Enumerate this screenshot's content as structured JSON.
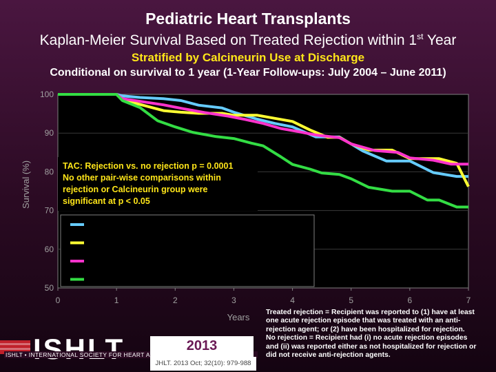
{
  "header": {
    "title": "Pediatric Heart Transplants",
    "subtitle_prefix": "Kaplan-Meier Survival Based on Treated Rejection within 1",
    "subtitle_sup": "st",
    "subtitle_suffix": " Year",
    "stratified": "Stratified by Calcineurin Use at Discharge",
    "conditional": "Conditional on survival to 1 year (1-Year Follow-ups: July 2004 – June 2011)"
  },
  "chart_data": {
    "type": "line",
    "xlabel": "Years",
    "ylabel": "Survival (%)",
    "xlim": [
      0,
      7
    ],
    "ylim": [
      50,
      100
    ],
    "xticks": [
      0,
      1,
      2,
      3,
      4,
      5,
      6,
      7
    ],
    "yticks": [
      50,
      60,
      70,
      80,
      90,
      100
    ],
    "annotation": [
      "TAC: Rejection vs. no rejection p = 0.0001",
      "No other pair-wise comparisons within",
      "rejection or Calcineurin group  were",
      "significant at p < 0.05"
    ],
    "legend_entries": 4,
    "series": [
      {
        "name": "",
        "color": "#66ccff",
        "x": [
          0,
          1.0,
          1.1,
          1.4,
          1.8,
          2.1,
          2.4,
          2.8,
          3.0,
          3.4,
          3.7,
          4.0,
          4.4,
          4.8,
          5.2,
          5.6,
          6.0,
          6.4,
          6.8,
          7.0
        ],
        "y": [
          100,
          100,
          99.6,
          99.2,
          98.9,
          98.4,
          97.2,
          96.5,
          95.4,
          93.6,
          92.5,
          91.6,
          89.0,
          89.0,
          85.4,
          82.8,
          82.8,
          79.8,
          78.8,
          78.8
        ]
      },
      {
        "name": "",
        "color": "#ffff33",
        "x": [
          0,
          1.0,
          1.1,
          1.4,
          1.8,
          2.1,
          2.4,
          2.8,
          3.0,
          3.4,
          3.7,
          4.0,
          4.3,
          4.6,
          4.8,
          5.0,
          5.3,
          5.7,
          6.0,
          6.5,
          6.8,
          7.0
        ],
        "y": [
          100,
          100,
          98.6,
          97.4,
          95.8,
          95.4,
          95.1,
          95.1,
          94.6,
          94.6,
          93.8,
          93.0,
          90.8,
          88.9,
          88.9,
          87.2,
          85.6,
          85.6,
          83.4,
          83.4,
          82.2,
          76.2
        ]
      },
      {
        "name": "",
        "color": "#ff33cc",
        "x": [
          0,
          1.0,
          1.1,
          1.4,
          1.8,
          2.1,
          2.5,
          2.9,
          3.2,
          3.5,
          3.8,
          4.1,
          4.4,
          4.8,
          5.0,
          5.4,
          5.8,
          6.0,
          6.4,
          6.7,
          7.0
        ],
        "y": [
          100,
          100,
          98.9,
          98.2,
          97.3,
          96.4,
          95.3,
          94.4,
          93.5,
          92.5,
          91.2,
          90.4,
          89.5,
          88.8,
          87.2,
          85.5,
          85.0,
          83.6,
          83.0,
          82.0,
          82.0
        ]
      },
      {
        "name": "",
        "color": "#33dd44",
        "x": [
          0,
          1.0,
          1.1,
          1.4,
          1.7,
          2.0,
          2.3,
          2.7,
          3.0,
          3.3,
          3.5,
          3.8,
          4.0,
          4.3,
          4.5,
          4.8,
          5.0,
          5.3,
          5.7,
          6.0,
          6.3,
          6.5,
          6.8,
          7.0
        ],
        "y": [
          100,
          100,
          98.4,
          96.6,
          93.2,
          91.6,
          90.2,
          89.1,
          88.6,
          87.4,
          86.7,
          83.9,
          81.9,
          80.7,
          79.7,
          79.3,
          78.2,
          76.0,
          75.0,
          75.0,
          72.7,
          72.7,
          70.9,
          70.9
        ]
      }
    ]
  },
  "footnote": [
    "Treated rejection = Recipient was reported to (1) have at least",
    "one acute rejection episode that was treated with an  anti-",
    "rejection agent; or (2) have been hospitalized for rejection.",
    "No rejection  = Recipient had (i) no acute rejection episodes",
    "and (ii) was reported either as not hospitalized for rejection or",
    "did not receive anti-rejection agents."
  ],
  "logo": {
    "text": "ISHLT",
    "tagline": "ISHLT • INTERNATIONAL SOCIETY FOR HEART AND LUNG TRANSPLANTATION",
    "year": "2013",
    "citation": "JHLT. 2013 Oct; 32(10): 979-988"
  },
  "colors": {
    "background": "#3b0f30",
    "accent_yellow": "#ffe619",
    "plot_bg": "#000000"
  }
}
